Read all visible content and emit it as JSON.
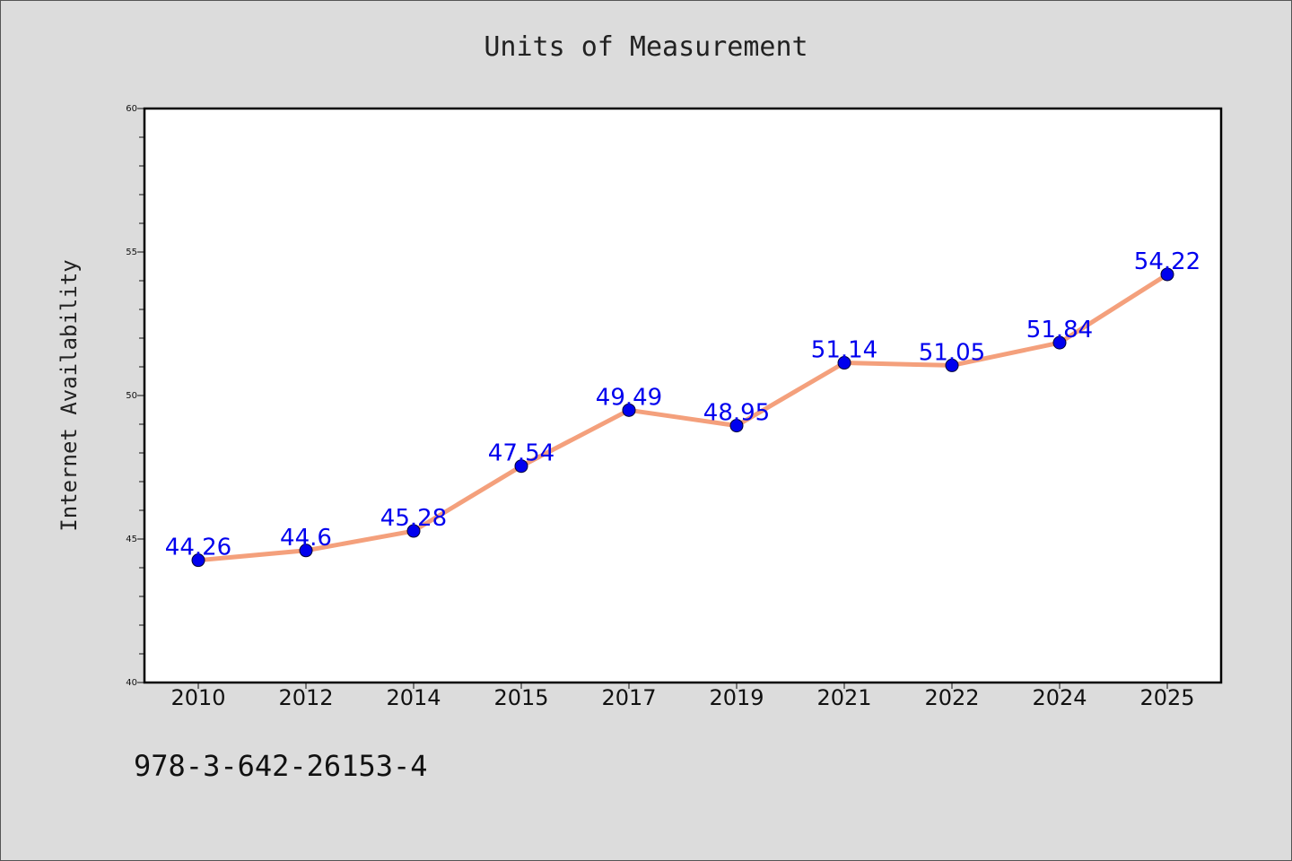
{
  "chart_data": {
    "type": "line",
    "title": "Units of Measurement",
    "xlabel": "",
    "ylabel": "Internet Availability",
    "categories": [
      "2010",
      "2012",
      "2014",
      "2015",
      "2017",
      "2019",
      "2021",
      "2022",
      "2024",
      "2025"
    ],
    "values": [
      44.26,
      44.6,
      45.28,
      47.54,
      49.49,
      48.95,
      51.14,
      51.05,
      51.84,
      54.22
    ],
    "data_labels": [
      "44.26",
      "44.6",
      "45.28",
      "47.54",
      "49.49",
      "48.95",
      "51.14",
      "51.05",
      "51.84",
      "54.22"
    ],
    "ylim": [
      40,
      60
    ],
    "yticks": [
      "40",
      "45",
      "50",
      "55",
      "60"
    ],
    "grid": false,
    "legend": "none",
    "colors": {
      "line": "#f4a07c",
      "marker": "#0000ee",
      "label": "#0000ee",
      "background": "#dcdcdc",
      "plot_background": "#ffffff"
    }
  },
  "footer": {
    "code": "978-3-642-26153-4"
  }
}
